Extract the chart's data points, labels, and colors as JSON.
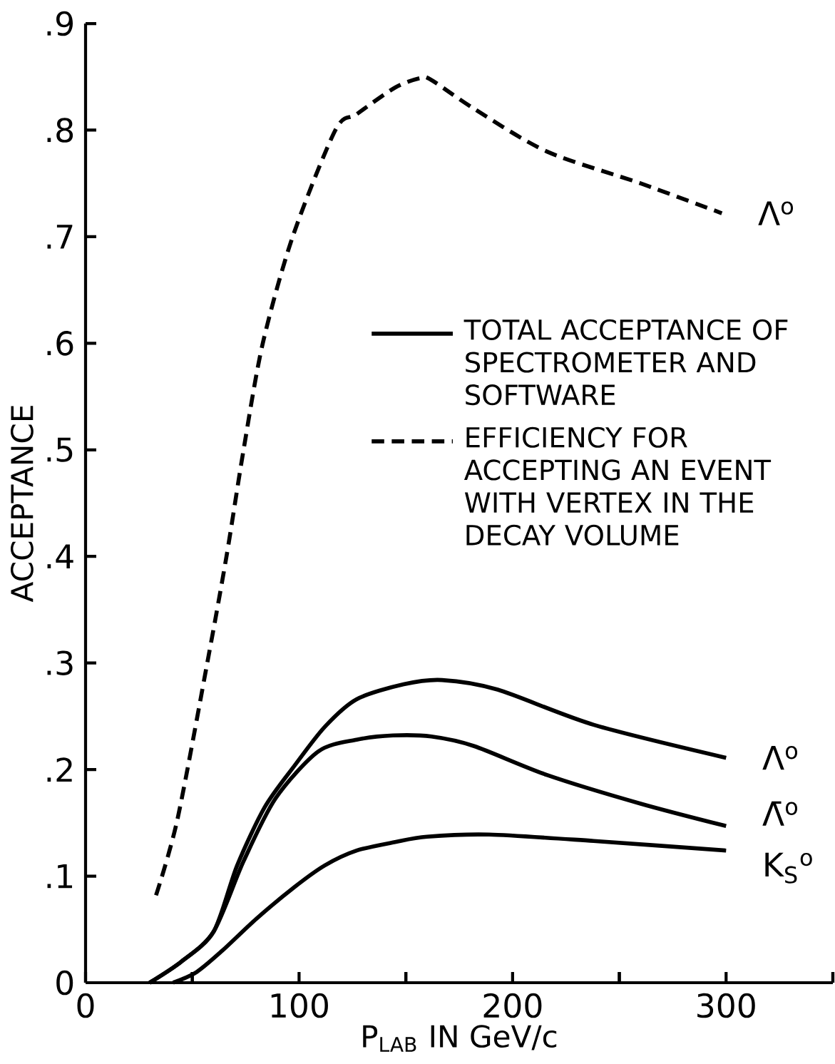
{
  "chart_data": {
    "type": "line",
    "xlabel": "P$_{LAB}$ IN GeV/c",
    "ylabel": "ACCEPTANCE",
    "xlim": [
      0,
      350
    ],
    "ylim": [
      0,
      0.9
    ],
    "xticks": [
      0,
      {
        "value": 50,
        "label": null
      },
      100,
      {
        "value": 150,
        "label": null
      },
      200,
      {
        "value": 250,
        "label": null
      },
      300,
      {
        "value": 350,
        "label": null
      }
    ],
    "yticks": [
      0,
      {
        "value": 0.1,
        "label": ".1"
      },
      {
        "value": 0.2,
        "label": ".2"
      },
      {
        "value": 0.3,
        "label": ".3"
      },
      {
        "value": 0.4,
        "label": ".4"
      },
      {
        "value": 0.5,
        "label": ".5"
      },
      {
        "value": 0.6,
        "label": ".6"
      },
      {
        "value": 0.7,
        "label": ".7"
      },
      {
        "value": 0.8,
        "label": ".8"
      },
      {
        "value": 0.9,
        "label": ".9"
      }
    ],
    "legend": false,
    "series": [
      {
        "name": "Λ$^{o}$",
        "color": "#000000",
        "line_style": "dashed",
        "x": [
          33,
          43,
          57,
          66,
          74,
          83,
          97,
          117,
          127,
          145,
          157,
          162,
          182,
          216,
          260,
          298
        ],
        "values": [
          0.082,
          0.153,
          0.3,
          0.4,
          0.5,
          0.6,
          0.7,
          0.8,
          0.815,
          0.84,
          0.849,
          0.847,
          0.82,
          0.78,
          0.75,
          0.722
        ]
      },
      {
        "name": "Λ$^{o}$",
        "color": "#000000",
        "line_style": "solid",
        "x": [
          30,
          45,
          60,
          71,
          84,
          98,
          112,
          127,
          149,
          167,
          193,
          238,
          300
        ],
        "values": [
          0,
          0.02,
          0.048,
          0.11,
          0.165,
          0.204,
          0.24,
          0.266,
          0.28,
          0.284,
          0.275,
          0.242,
          0.211
        ]
      },
      {
        "name": "Λ̄$^{o}$",
        "color": "#000000",
        "line_style": "solid",
        "x": [
          30,
          45,
          60,
          74,
          89,
          109,
          127,
          144,
          162,
          182,
          216,
          260,
          300
        ],
        "values": [
          0,
          0.02,
          0.048,
          0.114,
          0.173,
          0.217,
          0.228,
          0.232,
          0.231,
          0.222,
          0.195,
          0.168,
          0.147
        ]
      },
      {
        "name": "K$_{S}$$^{o}$",
        "color": "#000000",
        "line_style": "solid",
        "x": [
          41,
          52,
          64,
          80,
          98,
          112,
          127,
          145,
          160,
          189,
          238,
          300
        ],
        "values": [
          0,
          0.01,
          0.03,
          0.06,
          0.09,
          0.11,
          0.124,
          0.132,
          0.137,
          0.139,
          0.133,
          0.124
        ]
      }
    ],
    "annotations": [
      "TOTAL ACCEPTANCE OF SPECTROMETER AND SOFTWARE",
      "EFFICIENCY FOR ACCEPTING AN EVENT WITH VERTEX IN THE DECAY VOLUME"
    ]
  }
}
